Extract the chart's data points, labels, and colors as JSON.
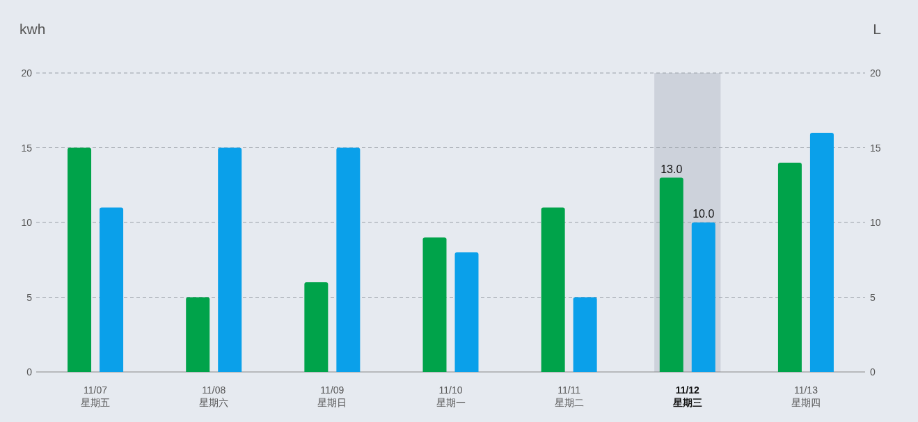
{
  "chart_data": {
    "type": "bar",
    "ylabel": "kwh",
    "y2label": "L",
    "categories": [
      "11/07\n星期五",
      "11/08\n星期六",
      "11/09\n星期日",
      "11/10\n星期一",
      "11/11\n星期二",
      "11/12\n星期三",
      "11/13\n星期四"
    ],
    "series": [
      {
        "color": "#00a34a",
        "values": [
          15,
          5,
          6,
          9,
          11,
          13,
          14
        ],
        "value_labels": [
          null,
          null,
          null,
          null,
          null,
          "13.0",
          null
        ]
      },
      {
        "color": "#0aa0ea",
        "axis": "y2",
        "values": [
          11,
          15,
          15,
          8,
          5,
          10,
          16
        ],
        "value_labels": [
          null,
          null,
          null,
          null,
          null,
          "10.0",
          null
        ]
      }
    ],
    "ylim": [
      0,
      20
    ],
    "yticks": [
      0,
      5,
      10,
      15,
      20
    ],
    "y2lim": [
      0,
      20
    ],
    "y2ticks": [
      0,
      5,
      10,
      15,
      20
    ],
    "grid": "y",
    "bands": [
      {
        "axis": "x",
        "from": "11/12\n星期三",
        "to": "11/12\n星期三",
        "color": "#cdd2db"
      }
    ]
  }
}
